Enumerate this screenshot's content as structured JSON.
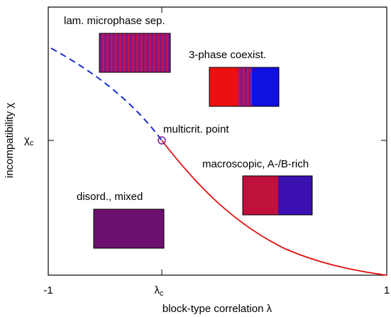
{
  "axes": {
    "x_label": "block-type correlation λ",
    "y_label": "incompatibility χ",
    "x_ticks": {
      "left": "-1",
      "middle": {
        "symbol": "λ",
        "subscript": "c"
      },
      "right": "1"
    },
    "y_ticks": {
      "middle": {
        "symbol": "χ",
        "subscript": "c"
      }
    }
  },
  "regions": {
    "lamellar": "lam. microphase sep.",
    "three_phase": "3-phase coexist.",
    "multicritical": "multicrit. point",
    "macroscopic": "macroscopic, A-/B-rich",
    "disordered": "disord., mixed"
  }
}
